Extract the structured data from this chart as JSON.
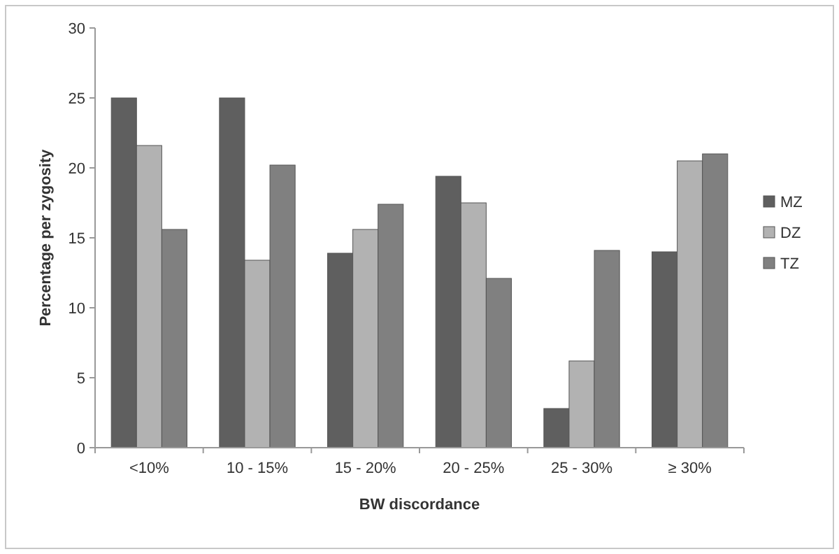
{
  "chart_data": {
    "type": "bar",
    "xlabel": "BW discordance",
    "ylabel": "Percentage per zygosity",
    "categories": [
      "<10%",
      "10 - 15%",
      "15 - 20%",
      "20 - 25%",
      "25 - 30%",
      "≥ 30%"
    ],
    "series": [
      {
        "name": "MZ",
        "color": "#5f5f5f",
        "values": [
          25,
          25,
          13.9,
          19.4,
          2.8,
          14
        ]
      },
      {
        "name": "DZ",
        "color": "#b2b2b2",
        "values": [
          21.6,
          13.4,
          15.6,
          17.5,
          6.2,
          20.5
        ]
      },
      {
        "name": "TZ",
        "color": "#808080",
        "values": [
          15.6,
          20.2,
          17.4,
          12.1,
          14.1,
          21.0
        ]
      }
    ],
    "ylim": [
      0,
      30
    ],
    "yticks": [
      0,
      5,
      10,
      15,
      20,
      25,
      30
    ],
    "grid": false,
    "legend": "right"
  }
}
